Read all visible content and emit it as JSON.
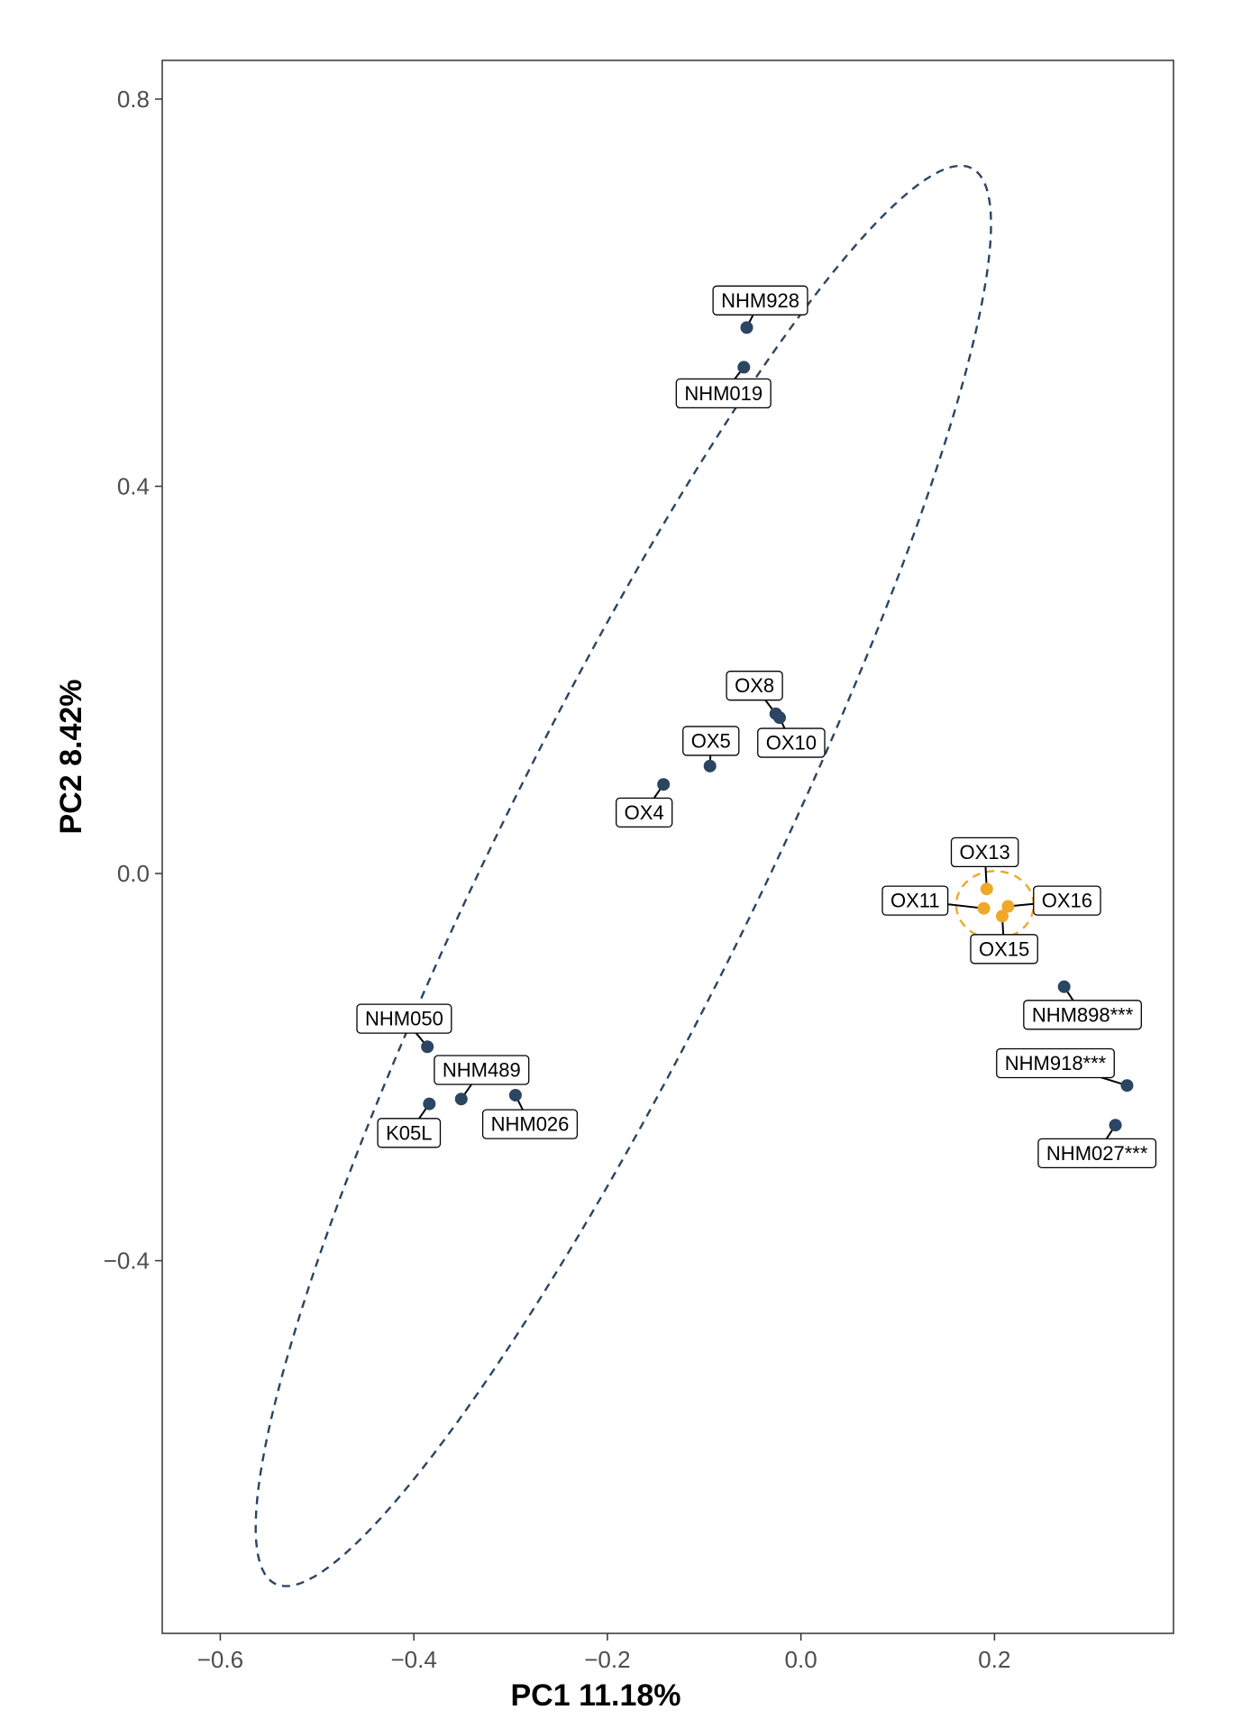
{
  "colors": {
    "group_main": "#2b4562",
    "group_orange": "#f0a829",
    "panel_border": "#333333",
    "tick_text": "#4d4d4d"
  },
  "chart_data": {
    "type": "scatter",
    "xlabel": "PC1 11.18%",
    "ylabel": "PC2 8.42%",
    "xlim": [
      -0.66,
      0.385
    ],
    "ylim": [
      -0.785,
      0.84
    ],
    "x_ticks": [
      -0.6,
      -0.4,
      -0.2,
      0.0,
      0.2
    ],
    "x_tick_labels": [
      "−0.6",
      "−0.4",
      "−0.2",
      "0.0",
      "0.2"
    ],
    "y_ticks": [
      0.8,
      0.4,
      0.0,
      -0.4
    ],
    "y_tick_labels": [
      "0.8",
      "0.4",
      "0.0",
      "−0.4"
    ],
    "grid": false,
    "legend": "none",
    "points": [
      {
        "label": "NHM928",
        "x": -0.056,
        "y": 0.564,
        "group": "main",
        "lx": -0.042,
        "ly": 0.592
      },
      {
        "label": "NHM019",
        "x": -0.059,
        "y": 0.523,
        "group": "main",
        "lx": -0.08,
        "ly": 0.496
      },
      {
        "label": "OX8",
        "x": -0.026,
        "y": 0.165,
        "group": "main",
        "lx": -0.048,
        "ly": 0.194
      },
      {
        "label": "OX10",
        "x": -0.022,
        "y": 0.161,
        "group": "main",
        "lx": -0.01,
        "ly": 0.135
      },
      {
        "label": "OX5",
        "x": -0.094,
        "y": 0.111,
        "group": "main",
        "lx": -0.093,
        "ly": 0.137
      },
      {
        "label": "OX4",
        "x": -0.142,
        "y": 0.092,
        "group": "main",
        "lx": -0.162,
        "ly": 0.063
      },
      {
        "label": "OX13",
        "x": 0.192,
        "y": -0.016,
        "group": "orange",
        "lx": 0.19,
        "ly": 0.022
      },
      {
        "label": "OX11",
        "x": 0.189,
        "y": -0.036,
        "group": "orange",
        "lx": 0.118,
        "ly": -0.028
      },
      {
        "label": "OX16",
        "x": 0.214,
        "y": -0.034,
        "group": "orange",
        "lx": 0.275,
        "ly": -0.028
      },
      {
        "label": "OX15",
        "x": 0.208,
        "y": -0.044,
        "group": "orange",
        "lx": 0.21,
        "ly": -0.078
      },
      {
        "label": "NHM898***",
        "x": 0.272,
        "y": -0.117,
        "group": "main",
        "lx": 0.291,
        "ly": -0.146
      },
      {
        "label": "NHM918***",
        "x": 0.337,
        "y": -0.219,
        "group": "main",
        "lx": 0.263,
        "ly": -0.196
      },
      {
        "label": "NHM027***",
        "x": 0.325,
        "y": -0.26,
        "group": "main",
        "lx": 0.306,
        "ly": -0.289
      },
      {
        "label": "NHM050",
        "x": -0.386,
        "y": -0.179,
        "group": "main",
        "lx": -0.41,
        "ly": -0.15
      },
      {
        "label": "NHM489",
        "x": -0.351,
        "y": -0.233,
        "group": "main",
        "lx": -0.33,
        "ly": -0.203
      },
      {
        "label": "NHM026",
        "x": -0.295,
        "y": -0.229,
        "group": "main",
        "lx": -0.28,
        "ly": -0.259
      },
      {
        "label": "K05L",
        "x": -0.384,
        "y": -0.238,
        "group": "main",
        "lx": -0.405,
        "ly": -0.268
      }
    ],
    "ellipses": [
      {
        "group": "main",
        "cx": -0.1835,
        "cy": -0.0025,
        "rx": 0.815,
        "ry": 0.136,
        "angle_deg": 63.8
      },
      {
        "group": "orange",
        "cx": 0.2005,
        "cy": -0.0325,
        "rx": 0.04,
        "ry": 0.035,
        "angle_deg": 0
      }
    ]
  }
}
